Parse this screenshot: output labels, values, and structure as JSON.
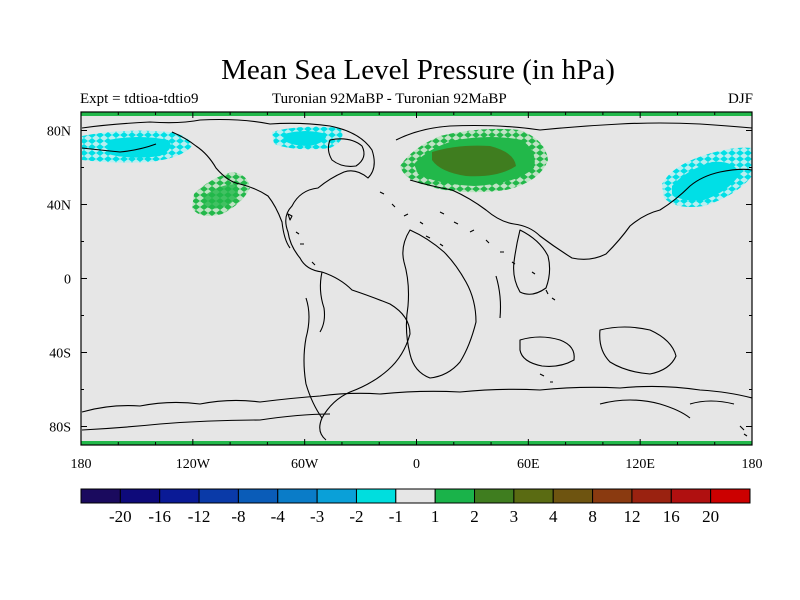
{
  "title": "Mean Sea Level Pressure (in hPa)",
  "experiment": "Expt = tdtioa-tdtio9",
  "period": "Turonian  92MaBP - Turonian  92MaBP",
  "season": "DJF",
  "map": {
    "background": "#e6e6e6",
    "lon_ticks": [
      "180",
      "120W",
      "60W",
      "0",
      "60E",
      "120E",
      "180"
    ],
    "lat_ticks": [
      "80N",
      "40N",
      "0",
      "40S",
      "80S"
    ]
  },
  "anomalies": [
    {
      "region": "arctic-west",
      "level": "-1",
      "color": "#00e5e5"
    },
    {
      "region": "pacific-north",
      "level": "1",
      "color": "#1ab34a"
    },
    {
      "region": "arctic-central",
      "level": "-1",
      "color": "#00e5e5"
    },
    {
      "region": "eurasia-north",
      "level": "3",
      "color": "#3f7d1f"
    },
    {
      "region": "asia-northeast",
      "level": "-1",
      "color": "#00e5e5"
    }
  ],
  "colorbar": {
    "colors": [
      "#1a0a5e",
      "#0e0a7a",
      "#0a1a96",
      "#0a3aa8",
      "#0a5cb8",
      "#0a7cc8",
      "#0aa0d8",
      "#00dede",
      "#e6e6e6",
      "#1ab34a",
      "#3f7d1f",
      "#5a6b12",
      "#6e5410",
      "#8a3a10",
      "#9a2210",
      "#b01010",
      "#cc0000"
    ],
    "labels": [
      "-20",
      "-16",
      "-12",
      "-8",
      "-4",
      "-3",
      "-2",
      "-1",
      "1",
      "2",
      "3",
      "4",
      "8",
      "12",
      "16",
      "20"
    ]
  }
}
